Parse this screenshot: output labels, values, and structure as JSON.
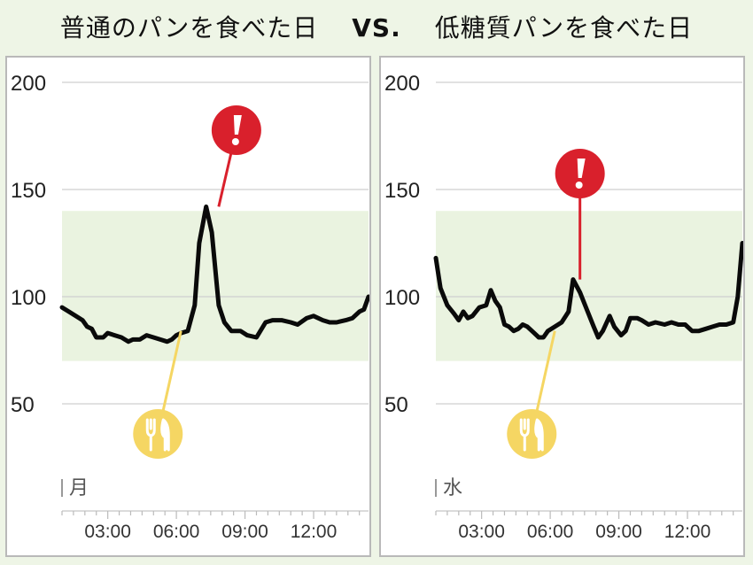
{
  "title": {
    "left": "普通のパンを食べた日",
    "vs": "VS.",
    "right": "低糖質パンを食べた日"
  },
  "colors": {
    "background": "#eef5e6",
    "target_band": "#eaf3e0",
    "line": "#0a0a0a",
    "alert": "#d9202c",
    "meal": "#f5d663",
    "grid": "#cfcfcf"
  },
  "chart_data": [
    {
      "type": "line",
      "day_label": "月",
      "yticks": [
        "200",
        "150",
        "100",
        "50"
      ],
      "yticks_values": [
        200,
        150,
        100,
        50
      ],
      "xticks": [
        "03:00",
        "06:00",
        "09:00",
        "12:00"
      ],
      "xticks_values": [
        3,
        6,
        9,
        12
      ],
      "xlim": [
        1,
        14.4
      ],
      "ylim": [
        0,
        200
      ],
      "target_range": [
        70,
        140
      ],
      "grid": true,
      "meal_marker": {
        "icon": "fork-knife-icon",
        "time": 6.2,
        "value": 84
      },
      "alert_marker": {
        "icon": "exclamation-icon",
        "time": 7.85,
        "value": 142
      },
      "series": [
        {
          "x": [
            1.0,
            1.3,
            1.6,
            1.9,
            2.1,
            2.3,
            2.5,
            2.8,
            3.0,
            3.3,
            3.6,
            3.9,
            4.1,
            4.4,
            4.7,
            5.0,
            5.3,
            5.6,
            5.8,
            6.0,
            6.2,
            6.5,
            6.8,
            7.0,
            7.3,
            7.55,
            7.85,
            8.1,
            8.4,
            8.8,
            9.1,
            9.5,
            9.9,
            10.2,
            10.6,
            11.0,
            11.3,
            11.7,
            12.0,
            12.4,
            12.7,
            13.0,
            13.4,
            13.7,
            14.0,
            14.2,
            14.4
          ],
          "y": [
            95,
            93,
            91,
            89,
            86,
            85,
            81,
            81,
            83,
            82,
            81,
            79,
            80,
            80,
            82,
            81,
            80,
            79,
            80,
            82,
            83,
            84,
            96,
            125,
            142,
            130,
            96,
            88,
            84,
            84,
            82,
            81,
            88,
            89,
            89,
            88,
            87,
            90,
            91,
            89,
            88,
            88,
            89,
            90,
            93,
            94,
            100
          ]
        }
      ]
    },
    {
      "type": "line",
      "day_label": "水",
      "yticks": [
        "200",
        "150",
        "100",
        "50"
      ],
      "yticks_values": [
        200,
        150,
        100,
        50
      ],
      "xticks": [
        "03:00",
        "06:00",
        "09:00",
        "12:00"
      ],
      "xticks_values": [
        3,
        6,
        9,
        12
      ],
      "xlim": [
        1,
        14.4
      ],
      "ylim": [
        0,
        200
      ],
      "target_range": [
        70,
        140
      ],
      "grid": true,
      "meal_marker": {
        "icon": "fork-knife-icon",
        "time": 6.2,
        "value": 84
      },
      "alert_marker": {
        "icon": "exclamation-icon",
        "time": 7.3,
        "value": 108
      },
      "series": [
        {
          "x": [
            1.0,
            1.2,
            1.5,
            1.8,
            2.0,
            2.2,
            2.4,
            2.6,
            2.9,
            3.2,
            3.4,
            3.6,
            3.8,
            4.0,
            4.2,
            4.4,
            4.6,
            4.8,
            5.0,
            5.3,
            5.5,
            5.7,
            5.9,
            6.2,
            6.5,
            6.8,
            7.0,
            7.3,
            7.6,
            7.9,
            8.1,
            8.3,
            8.6,
            8.8,
            9.1,
            9.3,
            9.5,
            9.8,
            10.0,
            10.3,
            10.6,
            11.0,
            11.3,
            11.6,
            11.9,
            12.2,
            12.5,
            12.8,
            13.1,
            13.4,
            13.7,
            14.0,
            14.2,
            14.4
          ],
          "y": [
            118,
            104,
            96,
            92,
            89,
            93,
            90,
            91,
            95,
            96,
            103,
            98,
            95,
            87,
            86,
            84,
            85,
            87,
            86,
            83,
            81,
            81,
            84,
            86,
            88,
            93,
            108,
            102,
            94,
            86,
            81,
            84,
            91,
            86,
            82,
            84,
            90,
            90,
            89,
            87,
            88,
            87,
            88,
            87,
            87,
            84,
            84,
            85,
            86,
            87,
            87,
            88,
            100,
            125
          ]
        }
      ]
    }
  ]
}
